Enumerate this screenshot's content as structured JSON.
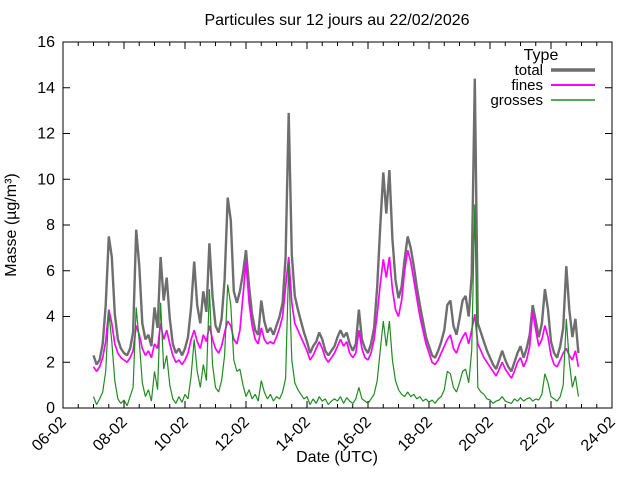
{
  "figure": {
    "title": "Particules sur 12 jours au 22/02/2026",
    "xlabel": "Date (UTC)",
    "ylabel": "Masse (µg/m³)"
  },
  "legend": {
    "title": "Type",
    "entries": [
      {
        "label": "total",
        "color": "#6e6e6e",
        "sample_width": 3.5
      },
      {
        "label": "fines",
        "color": "#ff00ff",
        "sample_width": 2.0
      },
      {
        "label": "grosses",
        "color": "#228b22",
        "sample_width": 1.5
      }
    ]
  },
  "chart_data": {
    "type": "line",
    "title": "Particules sur 12 jours au 22/02/2026",
    "xlabel": "Date (UTC)",
    "ylabel": "Masse (µg/m³)",
    "grid": false,
    "legend_position": "top-right-inside",
    "legend_title": "Type",
    "xlim": [
      0,
      18
    ],
    "ylim": [
      0,
      16
    ],
    "y_tick_step": 2,
    "y_tick_labels": [
      "0",
      "2",
      "4",
      "6",
      "8",
      "10",
      "12",
      "14",
      "16"
    ],
    "x_unit": "days after 06-02 00:00 UTC (dd-mm)",
    "x_tick_positions": [
      0,
      2,
      4,
      6,
      8,
      10,
      12,
      14,
      16,
      18
    ],
    "x_tick_labels": [
      "06-02",
      "08-02",
      "10-02",
      "12-02",
      "14-02",
      "16-02",
      "18-02",
      "20-02",
      "22-02",
      "24-02"
    ],
    "x_minor_tick_step": 0.5,
    "x_start": 1.0,
    "x_step": 0.1,
    "n_points": 160,
    "series": [
      {
        "name": "total",
        "color": "#6e6e6e",
        "stroke_width": 2.4,
        "values": [
          2.3,
          1.9,
          2.1,
          2.8,
          4.5,
          7.5,
          6.6,
          4.1,
          3.0,
          2.6,
          2.4,
          2.3,
          2.6,
          3.3,
          7.8,
          6.2,
          3.7,
          3.0,
          3.2,
          2.7,
          4.4,
          3.5,
          6.6,
          4.7,
          5.7,
          3.9,
          2.8,
          2.4,
          2.6,
          2.3,
          2.6,
          3.1,
          4.4,
          6.4,
          4.5,
          3.7,
          5.1,
          4.2,
          7.2,
          4.9,
          3.6,
          3.3,
          3.9,
          5.6,
          9.2,
          8.2,
          5.1,
          4.6,
          5.1,
          5.9,
          6.9,
          5.3,
          4.1,
          3.4,
          3.2,
          4.7,
          3.8,
          3.3,
          3.5,
          3.2,
          3.6,
          4.0,
          4.6,
          6.6,
          12.9,
          6.7,
          4.9,
          4.3,
          3.8,
          3.3,
          2.9,
          2.4,
          2.7,
          2.9,
          3.3,
          3.0,
          2.5,
          2.3,
          2.5,
          2.7,
          3.1,
          3.4,
          3.1,
          3.3,
          2.8,
          2.5,
          2.8,
          4.3,
          3.0,
          2.6,
          2.4,
          2.8,
          3.5,
          5.3,
          7.9,
          10.3,
          8.5,
          10.4,
          7.4,
          5.6,
          4.8,
          5.3,
          6.5,
          7.5,
          7.0,
          6.2,
          5.3,
          4.5,
          3.8,
          3.1,
          2.7,
          2.3,
          2.2,
          2.5,
          2.9,
          3.4,
          4.5,
          4.7,
          3.6,
          3.2,
          3.9,
          4.7,
          4.9,
          4.0,
          5.8,
          14.4,
          3.7,
          3.3,
          2.9,
          2.5,
          2.2,
          1.9,
          1.7,
          2.1,
          2.5,
          2.1,
          1.8,
          1.6,
          2.0,
          2.4,
          2.7,
          2.2,
          2.6,
          3.2,
          4.5,
          3.8,
          3.1,
          3.7,
          5.2,
          4.3,
          2.9,
          2.4,
          2.2,
          2.7,
          3.5,
          6.2,
          4.3,
          3.1,
          3.9,
          2.4
        ]
      },
      {
        "name": "fines",
        "color": "#ff00ff",
        "stroke_width": 1.7,
        "values": [
          1.8,
          1.6,
          1.8,
          2.2,
          2.9,
          4.3,
          3.7,
          2.8,
          2.4,
          2.2,
          2.1,
          2.0,
          2.2,
          2.5,
          3.6,
          3.2,
          2.6,
          2.3,
          2.5,
          2.2,
          2.8,
          2.6,
          3.7,
          3.0,
          3.4,
          2.8,
          2.3,
          2.0,
          2.1,
          1.9,
          2.1,
          2.4,
          3.0,
          3.4,
          2.9,
          2.6,
          3.2,
          2.9,
          3.6,
          3.0,
          2.6,
          2.4,
          2.7,
          3.3,
          3.8,
          3.6,
          3.0,
          2.8,
          3.4,
          4.9,
          6.4,
          4.6,
          3.6,
          3.0,
          2.8,
          3.5,
          3.0,
          2.8,
          2.9,
          2.8,
          3.1,
          3.5,
          4.0,
          5.3,
          6.6,
          4.6,
          3.7,
          3.4,
          3.1,
          2.8,
          2.5,
          2.1,
          2.3,
          2.6,
          2.9,
          2.6,
          2.2,
          2.0,
          2.2,
          2.4,
          2.7,
          3.0,
          2.7,
          2.9,
          2.4,
          2.2,
          2.4,
          3.4,
          2.6,
          2.2,
          2.1,
          2.4,
          3.0,
          4.1,
          5.4,
          6.5,
          5.7,
          6.6,
          5.2,
          4.3,
          4.0,
          4.7,
          6.0,
          6.9,
          6.4,
          5.6,
          4.8,
          4.0,
          3.4,
          2.8,
          2.4,
          2.0,
          1.9,
          2.1,
          2.4,
          2.7,
          3.0,
          3.2,
          2.6,
          2.4,
          2.8,
          3.1,
          3.3,
          2.8,
          3.4,
          4.1,
          2.8,
          2.5,
          2.2,
          2.0,
          1.8,
          1.6,
          1.4,
          1.7,
          2.0,
          1.7,
          1.5,
          1.3,
          1.6,
          2.0,
          2.2,
          1.8,
          2.1,
          2.7,
          4.2,
          3.4,
          2.7,
          3.0,
          3.6,
          3.1,
          2.3,
          1.9,
          1.8,
          2.1,
          2.4,
          2.6,
          2.3,
          2.1,
          2.5,
          1.8
        ]
      },
      {
        "name": "grosses",
        "color": "#228b22",
        "stroke_width": 1.2,
        "values": [
          0.5,
          0.15,
          0.4,
          0.7,
          1.6,
          4.2,
          2.9,
          1.2,
          0.4,
          0.2,
          0.35,
          0.1,
          0.5,
          0.9,
          4.4,
          2.9,
          1.1,
          0.5,
          0.8,
          0.3,
          1.6,
          0.8,
          4.6,
          1.7,
          2.3,
          1.0,
          0.4,
          0.2,
          0.5,
          0.25,
          0.6,
          0.4,
          1.4,
          3.0,
          1.6,
          0.9,
          1.9,
          1.2,
          5.2,
          1.9,
          0.9,
          0.7,
          1.2,
          2.3,
          5.4,
          4.5,
          2.1,
          1.6,
          1.7,
          1.0,
          0.5,
          0.8,
          0.4,
          0.6,
          0.3,
          1.2,
          0.7,
          0.4,
          0.6,
          0.3,
          0.5,
          0.4,
          0.7,
          1.3,
          6.3,
          2.1,
          1.1,
          0.8,
          0.6,
          0.4,
          0.5,
          0.15,
          0.4,
          0.2,
          0.5,
          0.3,
          0.4,
          0.15,
          0.3,
          0.4,
          0.3,
          0.5,
          0.2,
          0.45,
          0.3,
          0.2,
          0.4,
          0.9,
          0.4,
          0.3,
          0.2,
          0.4,
          0.6,
          1.2,
          2.5,
          3.8,
          2.7,
          3.8,
          2.1,
          1.2,
          0.8,
          0.6,
          0.5,
          0.7,
          0.5,
          0.6,
          0.4,
          0.5,
          0.3,
          0.4,
          0.25,
          0.35,
          0.2,
          0.4,
          0.5,
          0.8,
          1.6,
          1.5,
          0.9,
          0.7,
          1.1,
          1.6,
          1.7,
          1.1,
          2.5,
          8.9,
          0.9,
          0.7,
          0.6,
          0.4,
          0.35,
          0.2,
          0.3,
          0.35,
          0.5,
          0.3,
          0.25,
          0.2,
          0.4,
          0.3,
          0.45,
          0.3,
          0.4,
          0.45,
          0.3,
          0.4,
          0.35,
          0.6,
          1.5,
          1.1,
          0.5,
          0.4,
          0.3,
          0.5,
          1.0,
          3.9,
          2.0,
          0.9,
          1.4,
          0.5
        ]
      }
    ]
  }
}
